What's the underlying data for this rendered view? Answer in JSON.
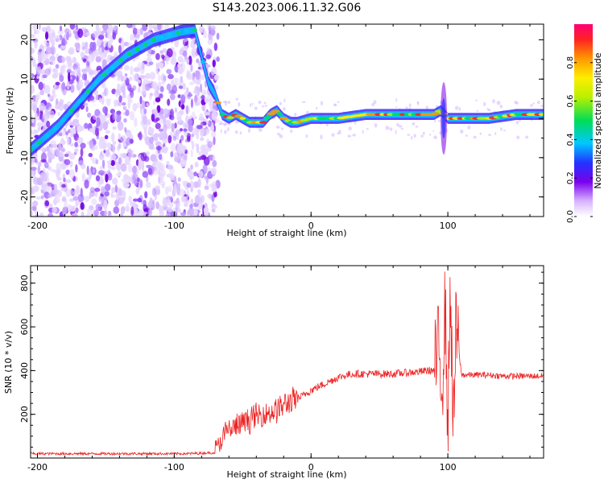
{
  "title": "S143.2023.006.11.32.G06",
  "chart_data": [
    {
      "type": "heatmap",
      "xlabel": "Height of straight line (km)",
      "ylabel": "Frequency (Hz)",
      "xlim": [
        -205,
        170
      ],
      "ylim": [
        -25,
        24
      ],
      "xticks": [
        -200,
        -100,
        0,
        100
      ],
      "yticks": [
        -20,
        -10,
        0,
        10,
        20
      ],
      "colorbar": {
        "label": "Normalized spectral amplitude",
        "range": [
          0,
          1
        ],
        "ticks": [
          0.0,
          0.2,
          0.4,
          0.6,
          0.8
        ]
      },
      "ridge": {
        "x": [
          -205,
          -195,
          -185,
          -175,
          -165,
          -155,
          -145,
          -135,
          -125,
          -115,
          -105,
          -95,
          -85,
          -75,
          -70,
          -65,
          -60,
          -55,
          -50,
          -45,
          -40,
          -35,
          -30,
          -25,
          -20,
          -15,
          -10,
          0,
          20,
          40,
          60,
          80,
          90,
          95,
          100,
          110,
          130,
          150,
          170
        ],
        "y": [
          -8,
          -5,
          -2,
          2,
          6,
          10,
          13,
          16,
          18,
          20,
          21,
          22,
          22.5,
          9,
          6,
          1,
          0,
          1,
          0,
          -1,
          -1,
          -1,
          1,
          2,
          0,
          -1,
          -1,
          0,
          0,
          1,
          1,
          1,
          1,
          2,
          0,
          0,
          0,
          1,
          1
        ]
      }
    },
    {
      "type": "line",
      "xlabel": "Height of straight line (km)",
      "ylabel": "SNR (10 * v/v)",
      "xlim": [
        -205,
        170
      ],
      "ylim": [
        0,
        880
      ],
      "xticks": [
        -200,
        -100,
        0,
        100
      ],
      "yticks": [
        200,
        400,
        600,
        800
      ],
      "color": "#ee2222",
      "series": [
        {
          "x": [
            -205,
            -180,
            -150,
            -120,
            -90,
            -70,
            -65,
            -60,
            -55,
            -50,
            -45,
            -40,
            -35,
            -30,
            -25,
            -20,
            -15,
            -10,
            -5,
            0,
            10,
            20,
            30,
            40,
            50,
            60,
            70,
            80,
            85,
            90,
            93,
            96,
            98,
            100,
            102,
            104,
            106,
            110,
            120,
            130,
            140,
            150,
            160,
            170
          ],
          "y": [
            20,
            20,
            20,
            20,
            20,
            25,
            90,
            130,
            140,
            160,
            175,
            190,
            200,
            210,
            220,
            240,
            260,
            270,
            290,
            310,
            340,
            370,
            385,
            385,
            385,
            385,
            390,
            395,
            400,
            400,
            500,
            350,
            700,
            150,
            800,
            100,
            600,
            380,
            380,
            380,
            375,
            375,
            375,
            375
          ]
        }
      ]
    }
  ]
}
